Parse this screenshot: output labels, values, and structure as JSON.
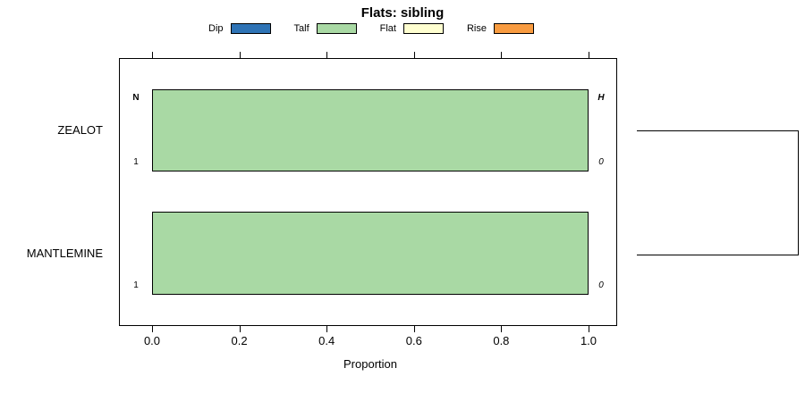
{
  "chart_data": {
    "type": "bar",
    "orientation": "horizontal",
    "stacked": true,
    "title": "Flats: sibling",
    "categories": [
      "ZEALOT",
      "MANTLEMINE"
    ],
    "series": [
      {
        "name": "Dip",
        "values": [
          0,
          0
        ]
      },
      {
        "name": "Talf",
        "values": [
          1,
          1
        ]
      },
      {
        "name": "Flat",
        "values": [
          0,
          0
        ]
      },
      {
        "name": "Rise",
        "values": [
          0,
          0
        ]
      }
    ],
    "xlabel": "Proportion",
    "xlim": [
      0,
      1
    ],
    "xticks": [
      "0.0",
      "0.2",
      "0.4",
      "0.6",
      "0.8",
      "1.0"
    ],
    "legend_position": "top",
    "grid": false,
    "annotations": {
      "left_header": "N",
      "right_header": "H",
      "rows": [
        {
          "category": "ZEALOT",
          "n": "1",
          "h": "0"
        },
        {
          "category": "MANTLEMINE",
          "n": "1",
          "h": "0"
        }
      ]
    }
  },
  "legend": {
    "items": [
      {
        "label": "Dip",
        "color": "#2E73B5"
      },
      {
        "label": "Talf",
        "color": "#A9D9A4"
      },
      {
        "label": "Flat",
        "color": "#FFFFD0"
      },
      {
        "label": "Rise",
        "color": "#F89B40"
      }
    ]
  }
}
